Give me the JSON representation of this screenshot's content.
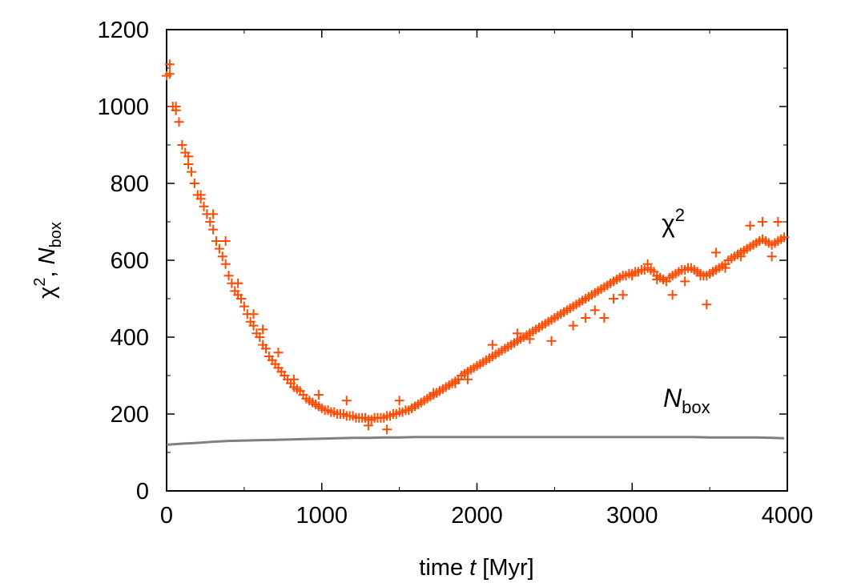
{
  "chart_data": {
    "type": "scatter",
    "xlabel": {
      "pre": "time ",
      "var": "t",
      "post": " [Myr]"
    },
    "ylabel": {
      "chi": "χ",
      "sup": "2",
      "sep": ", ",
      "n": "N",
      "sub": "box"
    },
    "xlim": [
      0,
      4000
    ],
    "ylim": [
      0,
      1200
    ],
    "xticks": [
      "0",
      "1000",
      "2000",
      "3000",
      "4000"
    ],
    "yticks": [
      "0",
      "200",
      "400",
      "600",
      "800",
      "1000",
      "1200"
    ],
    "grid": false,
    "series": [
      {
        "name": "χ²",
        "style": "plus-markers",
        "color": "#ff4a00",
        "x": [
          0,
          20,
          40,
          60,
          80,
          100,
          120,
          140,
          160,
          180,
          200,
          220,
          240,
          260,
          280,
          300,
          320,
          340,
          360,
          380,
          400,
          420,
          440,
          460,
          480,
          500,
          520,
          540,
          560,
          580,
          600,
          620,
          640,
          660,
          680,
          700,
          720,
          740,
          760,
          780,
          800,
          820,
          840,
          860,
          880,
          900,
          920,
          940,
          960,
          980,
          1000,
          1020,
          1040,
          1060,
          1080,
          1100,
          1120,
          1140,
          1160,
          1180,
          1200,
          1220,
          1240,
          1260,
          1280,
          1300,
          1320,
          1340,
          1360,
          1380,
          1400,
          1420,
          1440,
          1460,
          1480,
          1500,
          1520,
          1540,
          1560,
          1580,
          1600,
          1620,
          1640,
          1660,
          1680,
          1700,
          1720,
          1740,
          1760,
          1780,
          1800,
          1820,
          1840,
          1860,
          1880,
          1900,
          1920,
          1940,
          1960,
          1980,
          2000,
          2020,
          2040,
          2060,
          2080,
          2100,
          2120,
          2140,
          2160,
          2180,
          2200,
          2220,
          2240,
          2260,
          2280,
          2300,
          2320,
          2340,
          2360,
          2380,
          2400,
          2420,
          2440,
          2460,
          2480,
          2500,
          2520,
          2540,
          2560,
          2580,
          2600,
          2620,
          2640,
          2660,
          2680,
          2700,
          2720,
          2740,
          2760,
          2780,
          2800,
          2820,
          2840,
          2860,
          2880,
          2900,
          2920,
          2940,
          2960,
          2980,
          3000,
          3020,
          3040,
          3060,
          3080,
          3100,
          3120,
          3140,
          3160,
          3180,
          3200,
          3220,
          3240,
          3260,
          3280,
          3300,
          3320,
          3340,
          3360,
          3380,
          3400,
          3420,
          3440,
          3460,
          3480,
          3500,
          3520,
          3540,
          3560,
          3580,
          3600,
          3620,
          3640,
          3660,
          3680,
          3700,
          3720,
          3740,
          3760,
          3780,
          3800,
          3820,
          3840,
          3860,
          3880,
          3900,
          3920,
          3940,
          3960,
          3980
        ],
        "y": [
          1080,
          1110,
          1000,
          990,
          960,
          900,
          880,
          850,
          830,
          800,
          770,
          760,
          740,
          720,
          700,
          680,
          650,
          630,
          610,
          590,
          560,
          540,
          520,
          510,
          500,
          480,
          460,
          440,
          430,
          410,
          400,
          380,
          370,
          350,
          340,
          330,
          320,
          310,
          300,
          290,
          280,
          270,
          265,
          260,
          250,
          240,
          235,
          230,
          225,
          220,
          215,
          210,
          210,
          205,
          205,
          200,
          200,
          200,
          195,
          195,
          195,
          190,
          190,
          190,
          190,
          185,
          185,
          190,
          190,
          190,
          190,
          195,
          195,
          200,
          200,
          205,
          205,
          210,
          210,
          215,
          220,
          225,
          230,
          235,
          240,
          245,
          250,
          255,
          260,
          265,
          270,
          275,
          280,
          285,
          290,
          300,
          305,
          310,
          315,
          320,
          325,
          330,
          335,
          340,
          345,
          350,
          355,
          360,
          365,
          370,
          375,
          380,
          385,
          390,
          395,
          400,
          405,
          410,
          415,
          420,
          425,
          430,
          435,
          440,
          445,
          450,
          455,
          460,
          465,
          470,
          475,
          480,
          485,
          490,
          495,
          500,
          505,
          510,
          515,
          520,
          525,
          530,
          535,
          540,
          545,
          550,
          555,
          560,
          560,
          565,
          565,
          570,
          570,
          575,
          575,
          580,
          575,
          570,
          560,
          555,
          550,
          545,
          555,
          560,
          565,
          570,
          575,
          575,
          580,
          580,
          575,
          570,
          565,
          560,
          560,
          565,
          570,
          575,
          580,
          585,
          590,
          600,
          605,
          610,
          615,
          620,
          625,
          630,
          635,
          640,
          645,
          650,
          655,
          650,
          645,
          640,
          645,
          650,
          655,
          660
        ],
        "extra_points": [
          [
            20,
            1085
          ],
          [
            60,
            1000
          ],
          [
            140,
            870
          ],
          [
            220,
            770
          ],
          [
            300,
            720
          ],
          [
            380,
            650
          ],
          [
            460,
            540
          ],
          [
            560,
            460
          ],
          [
            620,
            420
          ],
          [
            720,
            360
          ],
          [
            820,
            290
          ],
          [
            980,
            250
          ],
          [
            1160,
            235
          ],
          [
            1300,
            170
          ],
          [
            1420,
            160
          ],
          [
            1500,
            235
          ],
          [
            1580,
            215
          ],
          [
            1720,
            255
          ],
          [
            1860,
            280
          ],
          [
            1940,
            290
          ],
          [
            2100,
            380
          ],
          [
            2260,
            410
          ],
          [
            2340,
            395
          ],
          [
            2480,
            390
          ],
          [
            2620,
            430
          ],
          [
            2700,
            450
          ],
          [
            2760,
            470
          ],
          [
            2820,
            450
          ],
          [
            2880,
            500
          ],
          [
            2940,
            510
          ],
          [
            3000,
            560
          ],
          [
            3100,
            590
          ],
          [
            3160,
            550
          ],
          [
            3260,
            510
          ],
          [
            3340,
            545
          ],
          [
            3440,
            560
          ],
          [
            3480,
            485
          ],
          [
            3540,
            620
          ],
          [
            3600,
            580
          ],
          [
            3700,
            610
          ],
          [
            3760,
            690
          ],
          [
            3840,
            700
          ],
          [
            3900,
            610
          ],
          [
            3940,
            700
          ]
        ]
      },
      {
        "name": "N_box",
        "style": "line",
        "color": "#808080",
        "x": [
          0,
          100,
          200,
          300,
          400,
          500,
          600,
          700,
          800,
          900,
          1000,
          1100,
          1200,
          1300,
          1400,
          1500,
          1600,
          1700,
          1800,
          1900,
          2000,
          2100,
          2200,
          2300,
          2400,
          2500,
          2600,
          2700,
          2800,
          2900,
          3000,
          3100,
          3200,
          3300,
          3400,
          3500,
          3600,
          3700,
          3800,
          3900,
          3980
        ],
        "y": [
          120,
          123,
          125,
          128,
          130,
          131,
          132,
          133,
          134,
          135,
          136,
          137,
          138,
          138,
          139,
          139,
          140,
          140,
          140,
          140,
          140,
          140,
          140,
          140,
          140,
          140,
          140,
          140,
          140,
          140,
          140,
          140,
          140,
          140,
          140,
          139,
          139,
          139,
          139,
          138,
          137
        ]
      }
    ],
    "annotations": {
      "chi": {
        "base": "χ",
        "sup": "2"
      },
      "nbox": {
        "base": "N",
        "sub": "box"
      }
    }
  }
}
